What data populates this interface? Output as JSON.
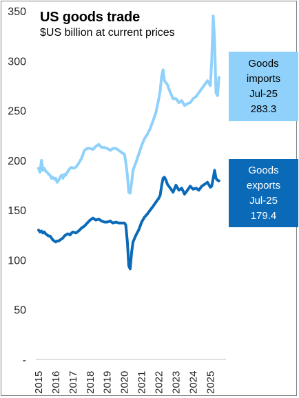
{
  "chart_data": {
    "type": "line",
    "title": "US goods trade",
    "subtitle": "$US billion at current prices",
    "ylim": [
      0,
      350
    ],
    "y_ticks": [
      "-",
      "50",
      "100",
      "150",
      "200",
      "250",
      "300",
      "350"
    ],
    "y_tick_values": [
      0,
      50,
      100,
      150,
      200,
      250,
      300,
      350
    ],
    "x_ticks": [
      "2015",
      "2016",
      "2017",
      "2018",
      "2019",
      "2020",
      "2021",
      "2022",
      "2023",
      "2024",
      "2025"
    ],
    "x_tick_values": [
      2015,
      2016,
      2017,
      2018,
      2019,
      2020,
      2021,
      2022,
      2023,
      2024,
      2025
    ],
    "xlim": [
      2015.0,
      2025.75
    ],
    "grid": false,
    "series": [
      {
        "name": "Goods imports",
        "color": "#8fd1fa",
        "x": [
          2015.0,
          2015.08,
          2015.17,
          2015.25,
          2015.33,
          2015.42,
          2015.5,
          2015.58,
          2015.67,
          2015.75,
          2015.83,
          2015.92,
          2016.0,
          2016.08,
          2016.17,
          2016.25,
          2016.33,
          2016.42,
          2016.5,
          2016.58,
          2016.67,
          2016.75,
          2016.83,
          2016.92,
          2017.0,
          2017.17,
          2017.33,
          2017.5,
          2017.67,
          2017.83,
          2018.0,
          2018.17,
          2018.33,
          2018.5,
          2018.67,
          2018.83,
          2019.0,
          2019.17,
          2019.33,
          2019.5,
          2019.67,
          2019.83,
          2020.0,
          2020.08,
          2020.17,
          2020.25,
          2020.33,
          2020.42,
          2020.5,
          2020.67,
          2020.83,
          2021.0,
          2021.17,
          2021.33,
          2021.5,
          2021.67,
          2021.83,
          2022.0,
          2022.08,
          2022.17,
          2022.25,
          2022.33,
          2022.42,
          2022.5,
          2022.67,
          2022.83,
          2023.0,
          2023.17,
          2023.33,
          2023.5,
          2023.67,
          2023.83,
          2024.0,
          2024.17,
          2024.33,
          2024.5,
          2024.67,
          2024.83,
          2025.0,
          2025.08,
          2025.17,
          2025.25,
          2025.33,
          2025.42,
          2025.5
        ],
        "values": [
          192,
          188,
          200,
          190,
          192,
          189,
          188,
          186,
          185,
          182,
          183,
          181,
          182,
          178,
          180,
          183,
          185,
          182,
          186,
          185,
          188,
          190,
          192,
          193,
          192,
          193,
          197,
          202,
          210,
          212,
          212,
          211,
          214,
          216,
          213,
          213,
          212,
          210,
          212,
          212,
          210,
          208,
          206,
          198,
          185,
          168,
          167,
          178,
          190,
          198,
          206,
          215,
          222,
          226,
          232,
          240,
          248,
          262,
          270,
          285,
          291,
          280,
          278,
          276,
          268,
          262,
          262,
          258,
          260,
          255,
          257,
          258,
          262,
          264,
          268,
          272,
          276,
          280,
          275,
          300,
          345,
          320,
          268,
          265,
          283.3
        ]
      },
      {
        "name": "Goods exports",
        "color": "#0b6ab8",
        "x": [
          2015.0,
          2015.08,
          2015.17,
          2015.25,
          2015.33,
          2015.42,
          2015.5,
          2015.58,
          2015.67,
          2015.75,
          2015.83,
          2015.92,
          2016.0,
          2016.08,
          2016.17,
          2016.25,
          2016.33,
          2016.42,
          2016.5,
          2016.58,
          2016.67,
          2016.75,
          2016.83,
          2016.92,
          2017.0,
          2017.17,
          2017.33,
          2017.5,
          2017.67,
          2017.83,
          2018.0,
          2018.17,
          2018.33,
          2018.5,
          2018.67,
          2018.83,
          2019.0,
          2019.17,
          2019.33,
          2019.5,
          2019.67,
          2019.83,
          2020.0,
          2020.08,
          2020.17,
          2020.25,
          2020.33,
          2020.42,
          2020.5,
          2020.67,
          2020.83,
          2021.0,
          2021.17,
          2021.33,
          2021.5,
          2021.67,
          2021.83,
          2022.0,
          2022.08,
          2022.17,
          2022.25,
          2022.33,
          2022.42,
          2022.5,
          2022.67,
          2022.83,
          2023.0,
          2023.17,
          2023.33,
          2023.5,
          2023.67,
          2023.83,
          2024.0,
          2024.17,
          2024.33,
          2024.5,
          2024.67,
          2024.83,
          2025.0,
          2025.08,
          2025.17,
          2025.25,
          2025.33,
          2025.42,
          2025.5
        ],
        "values": [
          130,
          128,
          129,
          127,
          128,
          126,
          125,
          124,
          124,
          122,
          120,
          119,
          118,
          119,
          119,
          120,
          121,
          122,
          124,
          125,
          126,
          126,
          125,
          127,
          128,
          127,
          129,
          132,
          134,
          137,
          140,
          142,
          140,
          141,
          139,
          138,
          138,
          139,
          137,
          138,
          137,
          137,
          137,
          135,
          118,
          94,
          91,
          108,
          118,
          125,
          130,
          138,
          143,
          146,
          150,
          154,
          158,
          162,
          165,
          175,
          182,
          183,
          180,
          176,
          172,
          168,
          175,
          170,
          172,
          166,
          170,
          174,
          171,
          172,
          170,
          174,
          176,
          178,
          173,
          174,
          182,
          190,
          182,
          180,
          179.4
        ]
      }
    ]
  },
  "callouts": {
    "imports": {
      "lines": [
        "Goods",
        "imports",
        "Jul-25",
        "283.3"
      ]
    },
    "exports": {
      "lines": [
        "Goods",
        "exports",
        "Jul-25",
        "179.4"
      ]
    }
  }
}
